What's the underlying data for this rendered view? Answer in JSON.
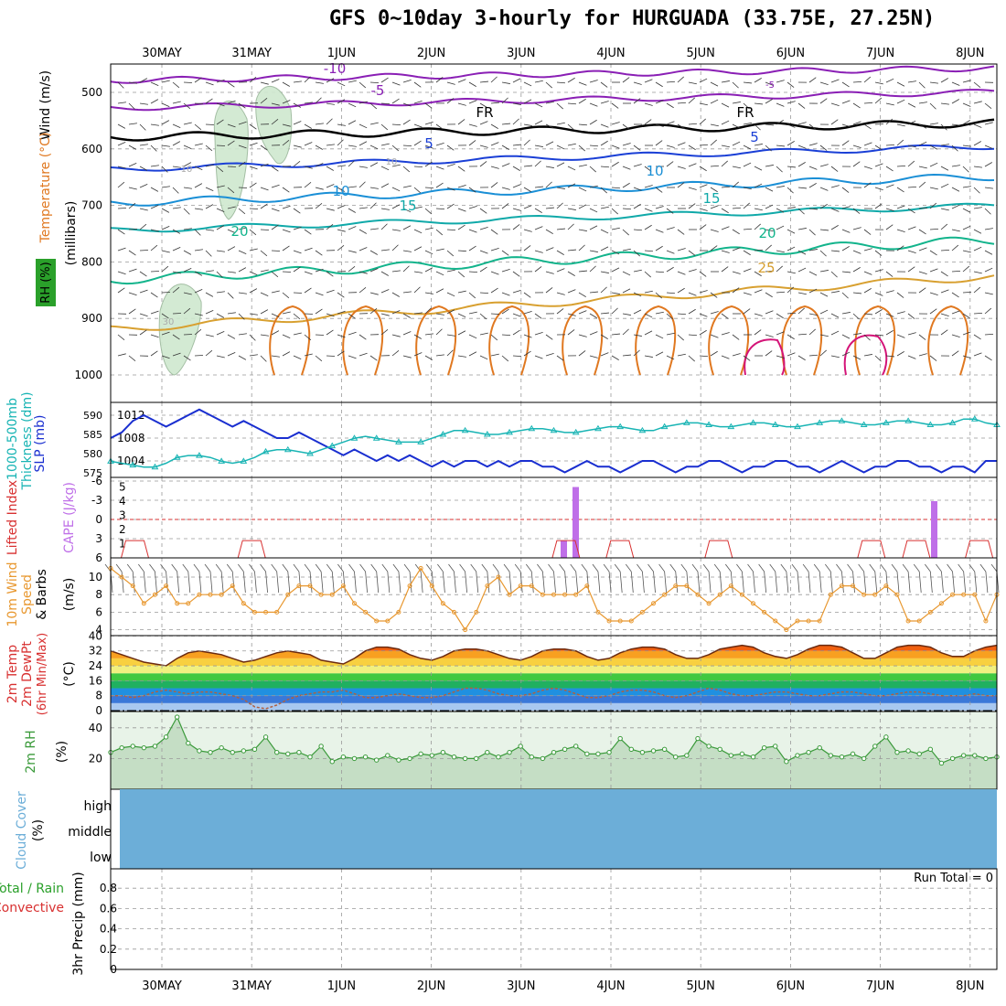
{
  "title": "GFS 0~10day 3-hourly for HURGUADA (33.75E, 27.25N)",
  "dates": [
    "30MAY",
    "31MAY",
    "1JUN",
    "2JUN",
    "3JUN",
    "4JUN",
    "5JUN",
    "6JUN",
    "7JUN",
    "8JUN"
  ],
  "colors": {
    "purple": "#8a1fb5",
    "black": "#000000",
    "blue": "#1a3fd6",
    "lightblue": "#1a8fd6",
    "teal": "#10a9a9",
    "green": "#13b48c",
    "gold": "#d8a030",
    "orange": "#e07820",
    "magenta": "#d41478",
    "rh_green": "#cfe8cf",
    "slp": "#1a2fd0",
    "thk": "#18b4b4",
    "li": "#d83030",
    "cape": "#bf6fe8",
    "wind": "#e89830",
    "cloud": "#6caed8",
    "rh2m": "#3a9a3a"
  },
  "panels": {
    "upper_air": {
      "labels": [
        "Wind (m/s)",
        "Temperature (°C)",
        "RH (%)",
        "(millibars)"
      ],
      "y_ticks": [
        "500",
        "600",
        "700",
        "800",
        "900",
        "1000"
      ]
    },
    "slp": {
      "labels": [
        "1000-500mb",
        "Thickness (dm)",
        "SLP (mb)"
      ],
      "left_ticks": [
        "590",
        "585",
        "580",
        "575"
      ],
      "right_ticks": [
        "1012",
        "1008",
        "1004"
      ]
    },
    "cape": {
      "labels": [
        "Lifted Index",
        "CAPE (J/kg)"
      ],
      "left_ticks": [
        "-6",
        "-3",
        "0",
        "3",
        "6"
      ],
      "right_ticks": [
        "5",
        "4",
        "3",
        "2",
        "1"
      ]
    },
    "wind10m": {
      "labels": [
        "10m Wind",
        "Speed",
        "& Barbs",
        "(m/s)"
      ],
      "y_ticks": [
        "10",
        "8",
        "6",
        "4"
      ]
    },
    "temp2m": {
      "labels": [
        "2m Temp",
        "2m DewPt",
        "(6hr Min/Max)",
        "(°C)"
      ],
      "y_ticks": [
        "40",
        "32",
        "24",
        "16",
        "8",
        "0"
      ]
    },
    "rh2m": {
      "labels": [
        "2m RH",
        "(%)"
      ],
      "y_ticks": [
        "40",
        "20"
      ]
    },
    "cloud": {
      "labels": [
        "Cloud Cover",
        "(%)"
      ],
      "levels": [
        "high",
        "middle",
        "low"
      ]
    },
    "precip": {
      "labels": [
        "Total / Rain",
        "Convective",
        "3hr Precip (mm)"
      ],
      "y_ticks": [
        "0.8",
        "0.6",
        "0.4",
        "0.2",
        "0"
      ],
      "run_total": "Run Total = 0"
    }
  },
  "chart_data": {
    "type": "line",
    "x_dates": [
      "30MAY",
      "31MAY",
      "1JUN",
      "2JUN",
      "3JUN",
      "4JUN",
      "5JUN",
      "6JUN",
      "7JUN",
      "8JUN"
    ],
    "isotherm_labels": [
      "-10",
      "-5",
      "FR",
      "FR",
      "5",
      "5",
      "10",
      "10",
      "15",
      "15",
      "20",
      "20",
      "25",
      "-5",
      "10",
      "10",
      "30"
    ],
    "slp_mb": [
      1008,
      1009,
      1011,
      1012,
      1011,
      1010,
      1011,
      1012,
      1013,
      1012,
      1011,
      1010,
      1011,
      1010,
      1009,
      1008,
      1008,
      1009,
      1008,
      1007,
      1006,
      1005,
      1006,
      1005,
      1004,
      1005,
      1004,
      1005,
      1004,
      1003,
      1004,
      1003,
      1004,
      1004,
      1003,
      1004,
      1003,
      1004,
      1004,
      1003,
      1003,
      1002,
      1003,
      1004,
      1003,
      1003,
      1002,
      1003,
      1004,
      1004,
      1003,
      1002,
      1003,
      1003,
      1004,
      1004,
      1003,
      1002,
      1003,
      1003,
      1004,
      1004,
      1003,
      1003,
      1002,
      1003,
      1004,
      1003,
      1002,
      1003,
      1003,
      1004,
      1004,
      1003,
      1003,
      1002,
      1003,
      1003,
      1002,
      1004,
      1004
    ],
    "thickness_dm": [
      578,
      577.5,
      577,
      576.5,
      576.5,
      577.5,
      579,
      579.5,
      579.5,
      579,
      578,
      577.5,
      578,
      579,
      580.5,
      581,
      581,
      580.5,
      580,
      581,
      582,
      583,
      584,
      584.5,
      584,
      583.5,
      583,
      583,
      583,
      584,
      585,
      586,
      586,
      585.5,
      585,
      585,
      585.5,
      586,
      586.5,
      586.5,
      586,
      585.5,
      585.5,
      586,
      586.5,
      587,
      587,
      586.5,
      586,
      586,
      587,
      587.5,
      588,
      588,
      587.5,
      587,
      587,
      587.5,
      588,
      588,
      587.5,
      587,
      587,
      587.5,
      588,
      588.5,
      588.5,
      588,
      587.5,
      587.5,
      588,
      588.5,
      588.5,
      588,
      587.5,
      587.5,
      588,
      589,
      589,
      588,
      587.5
    ],
    "cape_bars": [
      {
        "date": "3JUN 21Z",
        "value": 5
      },
      {
        "date": "7JUN 15Z",
        "value": 4
      }
    ],
    "wind10m_ms": [
      11,
      10,
      9,
      7,
      8,
      9,
      7,
      7,
      8,
      8,
      8,
      9,
      7,
      6,
      6,
      6,
      8,
      9,
      9,
      8,
      8,
      9,
      7,
      6,
      5,
      5,
      6,
      9,
      11,
      9,
      7,
      6,
      4,
      6,
      9,
      10,
      8,
      9,
      9,
      8,
      8,
      8,
      8,
      9,
      6,
      5,
      5,
      5,
      6,
      7,
      8,
      9,
      9,
      8,
      7,
      8,
      9,
      8,
      7,
      6,
      5,
      4,
      5,
      5,
      5,
      8,
      9,
      9,
      8,
      8,
      9,
      8,
      5,
      5,
      6,
      7,
      8,
      8,
      8,
      5,
      8
    ],
    "temp2m_c": [
      32,
      30,
      28,
      26,
      25,
      24,
      28,
      31,
      32,
      31,
      30,
      28,
      26,
      27,
      29,
      31,
      32,
      31,
      30,
      27,
      26,
      25,
      28,
      32,
      34,
      34,
      33,
      30,
      28,
      27,
      29,
      32,
      33,
      33,
      32,
      30,
      28,
      27,
      29,
      32,
      33,
      33,
      32,
      29,
      27,
      28,
      31,
      33,
      34,
      34,
      33,
      30,
      28,
      28,
      30,
      33,
      34,
      35,
      34,
      31,
      29,
      28,
      30,
      33,
      35,
      35,
      34,
      31,
      28,
      28,
      31,
      34,
      35,
      35,
      34,
      31,
      29,
      29,
      32,
      34,
      35
    ],
    "dewpt2m_c": [
      8,
      8,
      7,
      8,
      10,
      11,
      10,
      9,
      10,
      10,
      9,
      8,
      6,
      2,
      1,
      3,
      6,
      8,
      9,
      10,
      10,
      11,
      9,
      7,
      7,
      8,
      9,
      8,
      7,
      7,
      8,
      10,
      12,
      12,
      11,
      9,
      8,
      8,
      9,
      11,
      12,
      11,
      9,
      7,
      7,
      8,
      10,
      11,
      11,
      10,
      8,
      7,
      8,
      10,
      12,
      11,
      9,
      8,
      8,
      9,
      10,
      10,
      9,
      8,
      8,
      9,
      10,
      10,
      9,
      8,
      8,
      9,
      10,
      10,
      9,
      8,
      8,
      8,
      9,
      8,
      8
    ],
    "rh2m_pct": [
      24,
      27,
      28,
      27,
      28,
      34,
      47,
      30,
      25,
      24,
      27,
      24,
      25,
      26,
      34,
      24,
      23,
      24,
      21,
      28,
      18,
      21,
      20,
      21,
      19,
      22,
      19,
      20,
      23,
      22,
      24,
      21,
      20,
      20,
      24,
      21,
      24,
      28,
      21,
      20,
      24,
      26,
      28,
      23,
      23,
      24,
      33,
      26,
      24,
      25,
      26,
      21,
      22,
      33,
      28,
      26,
      22,
      23,
      21,
      27,
      28,
      18,
      22,
      24,
      27,
      22,
      21,
      23,
      20,
      28,
      34,
      24,
      25,
      23,
      26,
      17,
      20,
      22,
      22,
      20,
      21
    ],
    "li_points": [
      [
        -0.3,
        1.8
      ],
      [
        1,
        1.8
      ],
      [
        4.5,
        1.6
      ],
      [
        5.1,
        1.8
      ],
      [
        6.2,
        0.8
      ],
      [
        7.9,
        1.6
      ],
      [
        8.4,
        0.6
      ],
      [
        9.1,
        0.4
      ]
    ],
    "cloud_cover_pct": 100,
    "precip_mm": 0
  }
}
